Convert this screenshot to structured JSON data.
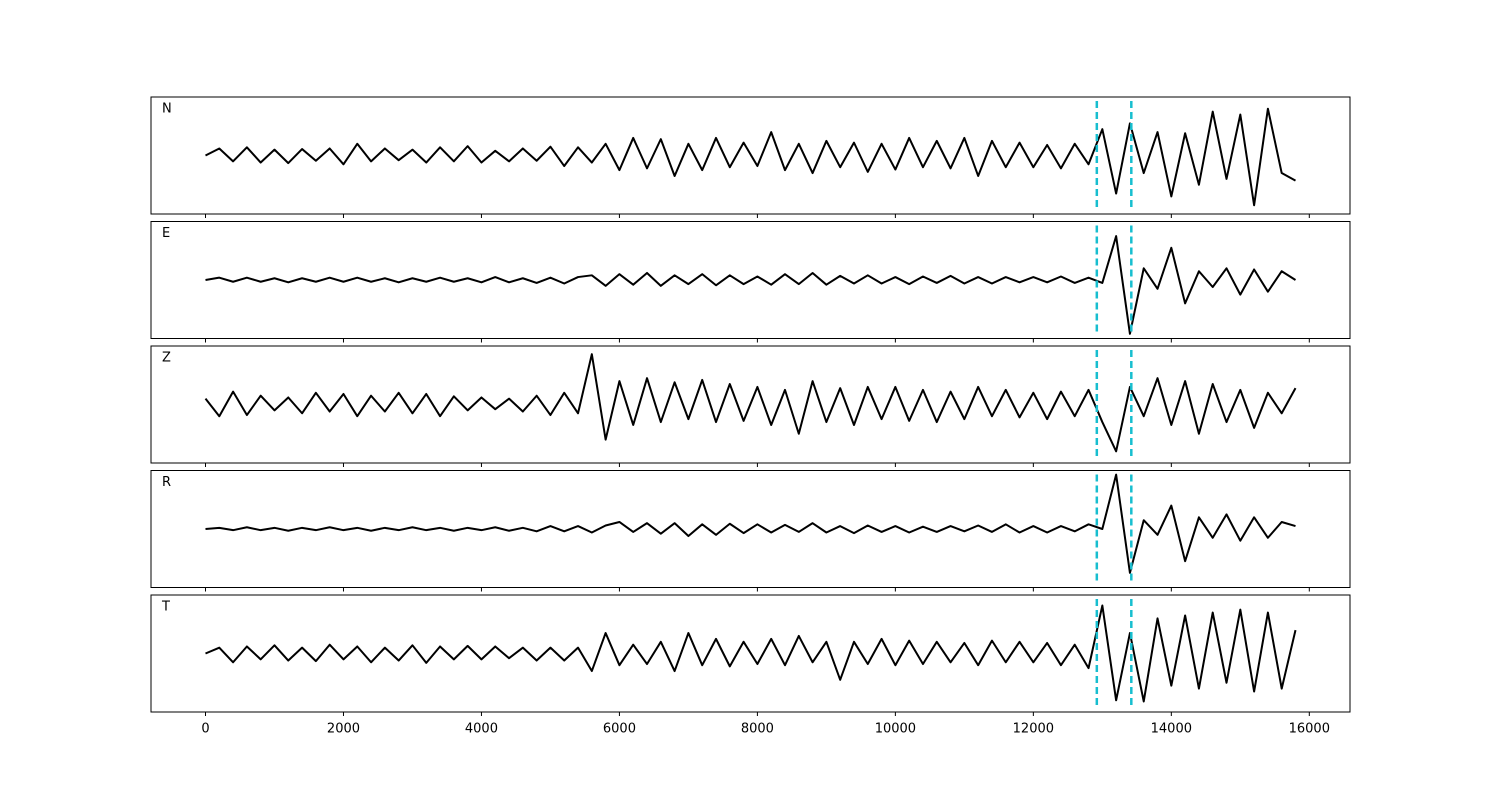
{
  "chart_data": {
    "type": "line",
    "x": [
      0,
      200,
      400,
      600,
      800,
      1000,
      1200,
      1400,
      1600,
      1800,
      2000,
      2200,
      2400,
      2600,
      2800,
      3000,
      3200,
      3400,
      3600,
      3800,
      4000,
      4200,
      4400,
      4600,
      4800,
      5000,
      5200,
      5400,
      5600,
      5800,
      6000,
      6200,
      6400,
      6600,
      6800,
      7000,
      7200,
      7400,
      7600,
      7800,
      8000,
      8200,
      8400,
      8600,
      8800,
      9000,
      9200,
      9400,
      9600,
      9800,
      10000,
      10200,
      10400,
      10600,
      10800,
      11000,
      11200,
      11400,
      11600,
      11800,
      12000,
      12200,
      12400,
      12600,
      12800,
      13000,
      13200,
      13400,
      13600,
      13800,
      14000,
      14200,
      14400,
      14600,
      14800,
      15000,
      15200,
      15400,
      15600,
      15800
    ],
    "xlim": [
      -790,
      16590
    ],
    "xticks": [
      0,
      2000,
      4000,
      6000,
      8000,
      10000,
      12000,
      14000,
      16000
    ],
    "ylim": [
      -1,
      1
    ],
    "vlines": {
      "values": [
        12920,
        13420
      ],
      "color": "#17becf"
    },
    "series": [
      {
        "name": "N",
        "color": "#000000",
        "values": [
          0,
          0.12,
          -0.1,
          0.14,
          -0.12,
          0.1,
          -0.13,
          0.11,
          -0.09,
          0.12,
          -0.15,
          0.2,
          -0.1,
          0.12,
          -0.08,
          0.1,
          -0.12,
          0.14,
          -0.1,
          0.16,
          -0.12,
          0.08,
          -0.1,
          0.12,
          -0.09,
          0.15,
          -0.18,
          0.14,
          -0.12,
          0.2,
          -0.25,
          0.3,
          -0.22,
          0.28,
          -0.35,
          0.2,
          -0.25,
          0.3,
          -0.2,
          0.22,
          -0.18,
          0.4,
          -0.25,
          0.2,
          -0.3,
          0.25,
          -0.2,
          0.22,
          -0.28,
          0.2,
          -0.24,
          0.3,
          -0.2,
          0.25,
          -0.22,
          0.3,
          -0.35,
          0.25,
          -0.2,
          0.22,
          -0.2,
          0.18,
          -0.22,
          0.2,
          -0.15,
          0.45,
          -0.65,
          0.55,
          -0.3,
          0.4,
          -0.7,
          0.38,
          -0.5,
          0.75,
          -0.4,
          0.7,
          -0.85,
          0.8,
          -0.3,
          -0.43
        ]
      },
      {
        "name": "E",
        "color": "#000000",
        "values": [
          0,
          0.04,
          -0.03,
          0.04,
          -0.03,
          0.03,
          -0.04,
          0.03,
          -0.03,
          0.04,
          -0.03,
          0.04,
          -0.03,
          0.03,
          -0.04,
          0.03,
          -0.03,
          0.04,
          -0.03,
          0.03,
          -0.04,
          0.05,
          -0.04,
          0.03,
          -0.05,
          0.04,
          -0.06,
          0.05,
          0.08,
          -0.1,
          0.1,
          -0.08,
          0.12,
          -0.1,
          0.08,
          -0.07,
          0.1,
          -0.09,
          0.08,
          -0.07,
          0.06,
          -0.08,
          0.1,
          -0.07,
          0.12,
          -0.08,
          0.07,
          -0.06,
          0.08,
          -0.06,
          0.05,
          -0.07,
          0.06,
          -0.05,
          0.07,
          -0.06,
          0.05,
          -0.06,
          0.05,
          -0.04,
          0.05,
          -0.04,
          0.06,
          -0.05,
          0.04,
          -0.05,
          0.75,
          -0.92,
          0.2,
          -0.15,
          0.55,
          -0.4,
          0.15,
          -0.12,
          0.2,
          -0.25,
          0.18,
          -0.2,
          0.15,
          0
        ]
      },
      {
        "name": "Z",
        "color": "#000000",
        "values": [
          0.1,
          -0.2,
          0.22,
          -0.18,
          0.15,
          -0.1,
          0.12,
          -0.15,
          0.2,
          -0.12,
          0.18,
          -0.2,
          0.15,
          -0.12,
          0.2,
          -0.15,
          0.18,
          -0.2,
          0.14,
          -0.1,
          0.12,
          -0.08,
          0.1,
          -0.12,
          0.15,
          -0.18,
          0.2,
          -0.15,
          0.86,
          -0.6,
          0.4,
          -0.35,
          0.45,
          -0.3,
          0.38,
          -0.25,
          0.42,
          -0.3,
          0.35,
          -0.28,
          0.3,
          -0.35,
          0.25,
          -0.5,
          0.4,
          -0.3,
          0.28,
          -0.35,
          0.3,
          -0.25,
          0.3,
          -0.28,
          0.25,
          -0.3,
          0.22,
          -0.25,
          0.3,
          -0.2,
          0.25,
          -0.22,
          0.2,
          -0.25,
          0.22,
          -0.2,
          0.25,
          -0.3,
          -0.8,
          0.3,
          -0.2,
          0.45,
          -0.35,
          0.4,
          -0.5,
          0.35,
          -0.3,
          0.25,
          -0.4,
          0.2,
          -0.15,
          0.28
        ]
      },
      {
        "name": "R",
        "color": "#000000",
        "values": [
          0,
          0.02,
          -0.02,
          0.03,
          -0.02,
          0.02,
          -0.03,
          0.02,
          -0.02,
          0.03,
          -0.02,
          0.02,
          -0.03,
          0.02,
          -0.02,
          0.03,
          -0.02,
          0.02,
          -0.03,
          0.02,
          -0.02,
          0.03,
          -0.03,
          0.02,
          -0.04,
          0.05,
          -0.04,
          0.05,
          -0.06,
          0.06,
          0.12,
          -0.05,
          0.1,
          -0.08,
          0.1,
          -0.12,
          0.08,
          -0.1,
          0.09,
          -0.07,
          0.08,
          -0.06,
          0.07,
          -0.05,
          0.1,
          -0.06,
          0.05,
          -0.07,
          0.06,
          -0.05,
          0.05,
          -0.06,
          0.04,
          -0.05,
          0.05,
          -0.04,
          0.06,
          -0.05,
          0.08,
          -0.06,
          0.05,
          -0.06,
          0.05,
          -0.04,
          0.08,
          0,
          0.93,
          -0.75,
          0.15,
          -0.1,
          0.4,
          -0.55,
          0.2,
          -0.15,
          0.25,
          -0.2,
          0.2,
          -0.15,
          0.12,
          0.05
        ]
      },
      {
        "name": "T",
        "color": "#000000",
        "values": [
          0,
          0.1,
          -0.15,
          0.12,
          -0.1,
          0.14,
          -0.12,
          0.1,
          -0.13,
          0.15,
          -0.1,
          0.12,
          -0.15,
          0.1,
          -0.12,
          0.14,
          -0.16,
          0.12,
          -0.1,
          0.13,
          -0.1,
          0.12,
          -0.08,
          0.1,
          -0.12,
          0.1,
          -0.12,
          0.1,
          -0.3,
          0.35,
          -0.2,
          0.15,
          -0.18,
          0.2,
          -0.3,
          0.35,
          -0.2,
          0.25,
          -0.22,
          0.2,
          -0.18,
          0.25,
          -0.2,
          0.3,
          -0.15,
          0.2,
          -0.45,
          0.2,
          -0.18,
          0.25,
          -0.2,
          0.22,
          -0.18,
          0.2,
          -0.15,
          0.18,
          -0.2,
          0.22,
          -0.15,
          0.2,
          -0.15,
          0.18,
          -0.2,
          0.15,
          -0.25,
          0.82,
          -0.8,
          0.35,
          -0.82,
          0.6,
          -0.55,
          0.65,
          -0.6,
          0.7,
          -0.5,
          0.75,
          -0.65,
          0.7,
          -0.6,
          0.4
        ]
      }
    ]
  }
}
